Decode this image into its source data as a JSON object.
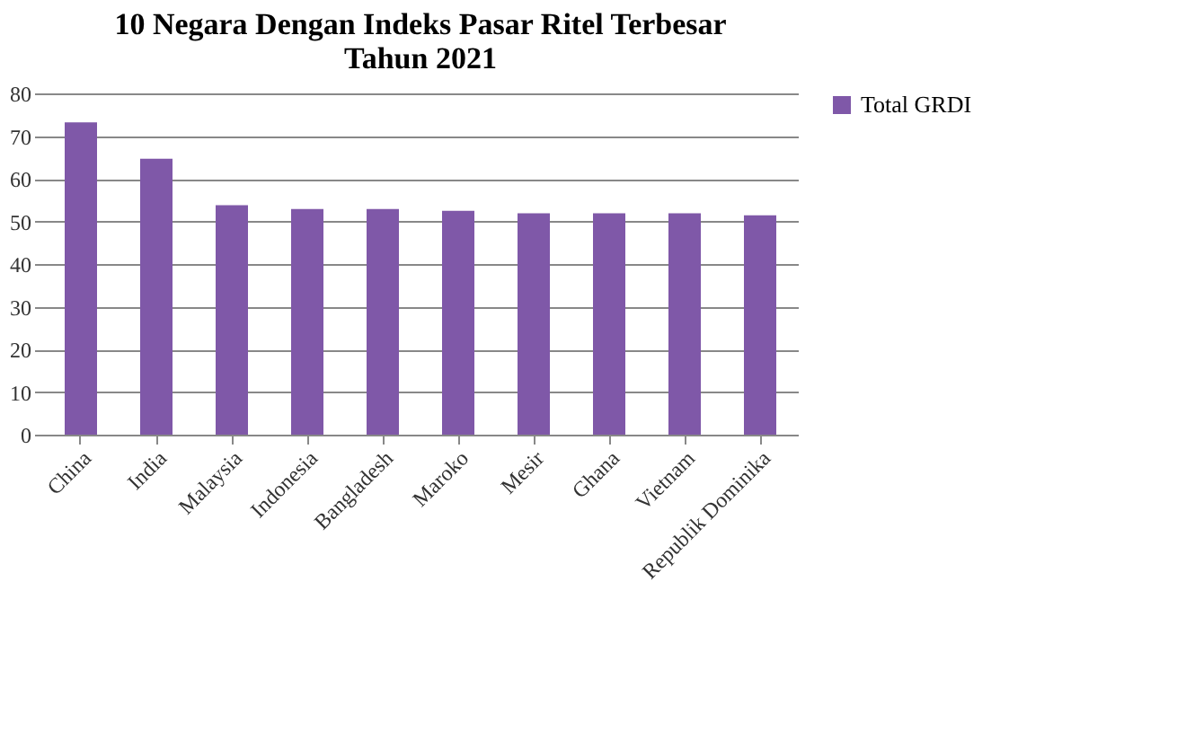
{
  "chart_data": {
    "type": "bar",
    "title": [
      "10 Negara Dengan Indeks Pasar Ritel Terbesar",
      "Tahun 2021"
    ],
    "categories": [
      "China",
      "India",
      "Malaysia",
      "Indonesia",
      "Bangladesh",
      "Maroko",
      "Mesir",
      "Ghana",
      "Vietnam",
      "Republik Dominika"
    ],
    "series": [
      {
        "name": "Total GRDI",
        "color": "#7f58a8",
        "values": [
          73.2,
          64.7,
          53.8,
          52.9,
          52.9,
          52.5,
          51.9,
          51.9,
          51.9,
          51.4
        ]
      }
    ],
    "ylim": [
      0,
      80
    ],
    "yticks": [
      0,
      10,
      20,
      30,
      40,
      50,
      60,
      70,
      80
    ],
    "grid": "y",
    "legend": "right"
  }
}
